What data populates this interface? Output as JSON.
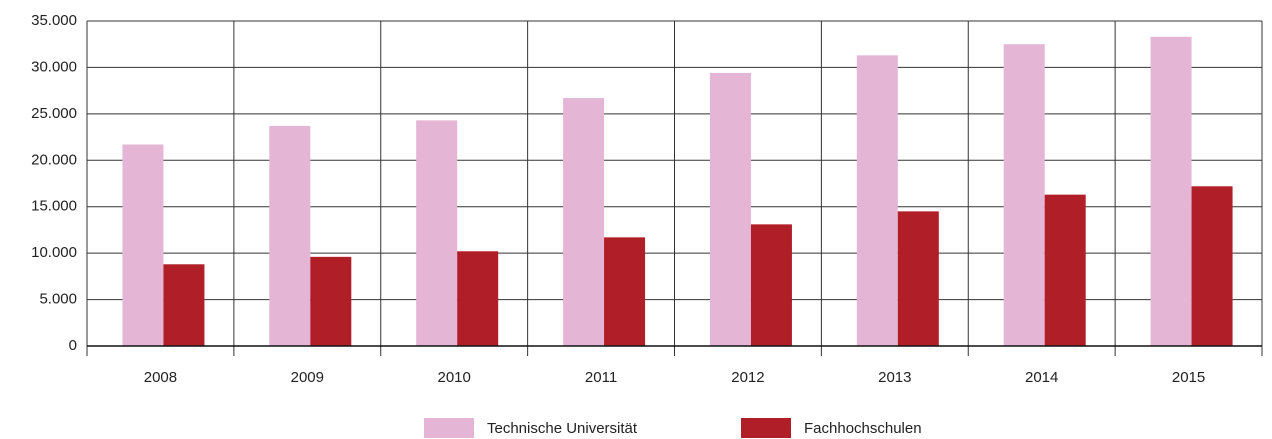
{
  "chart_data": {
    "type": "bar",
    "categories": [
      "2008",
      "2009",
      "2010",
      "2011",
      "2012",
      "2013",
      "2014",
      "2015"
    ],
    "series": [
      {
        "name": "Technische Universität",
        "color": "#e4b5d5",
        "values": [
          21700,
          23700,
          24300,
          26700,
          29400,
          31300,
          32500,
          33300
        ]
      },
      {
        "name": "Fachhochschulen",
        "color": "#b01e28",
        "values": [
          8800,
          9600,
          10200,
          11700,
          13100,
          14500,
          16300,
          17200
        ]
      }
    ],
    "ylim": [
      0,
      35000
    ],
    "yticks": [
      0,
      {
        "value": 5000,
        "label": "5.000"
      },
      {
        "value": 10000,
        "label": "10.000"
      },
      {
        "value": 15000,
        "label": "15.000"
      },
      {
        "value": 20000,
        "label": "20.000"
      },
      {
        "value": 25000,
        "label": "25.000"
      },
      {
        "value": 30000,
        "label": "30.000"
      },
      {
        "value": 35000,
        "label": "35.000"
      }
    ],
    "grid": true,
    "legend": "bottom"
  }
}
